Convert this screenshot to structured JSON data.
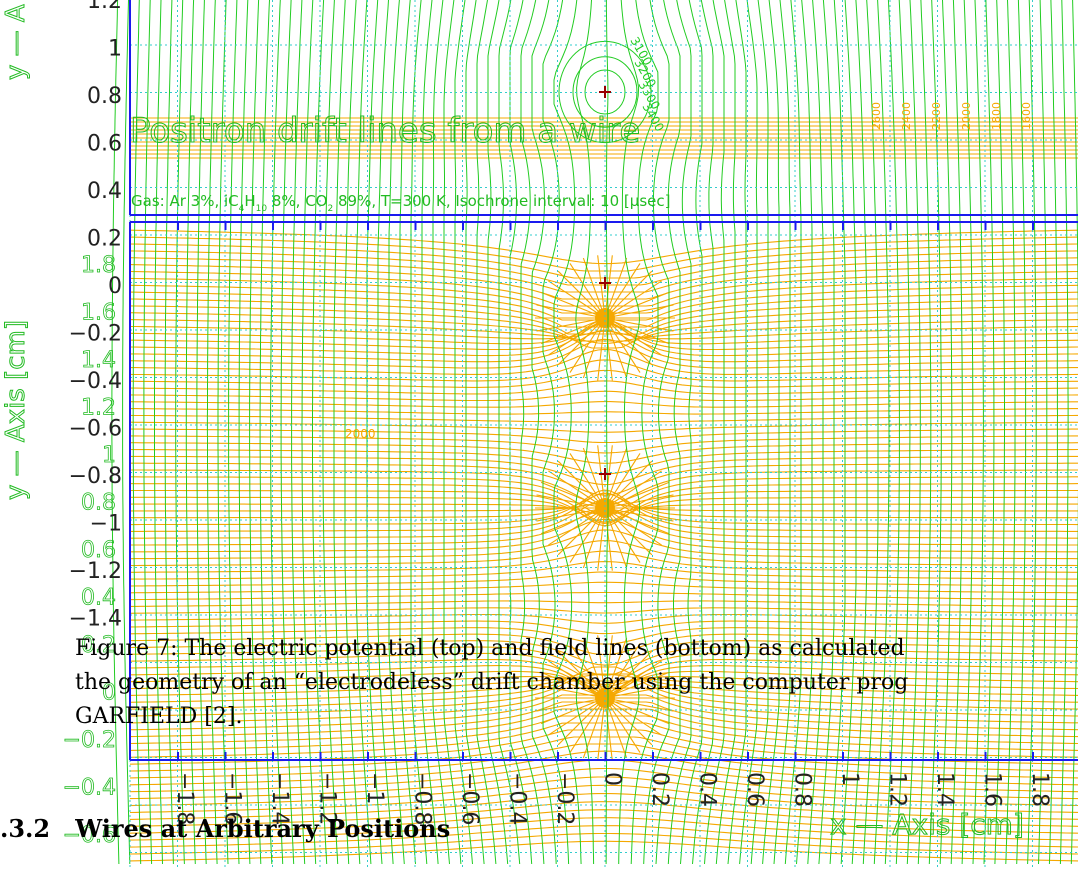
{
  "top_panel": {
    "title": "Positron drift lines from a wire",
    "gas_info": "Gas: Ar 3%, iC",
    "gas_sub1": "4",
    "gas_mid1": "H",
    "gas_sub2": "10",
    "gas_mid2": " 8%, CO",
    "gas_sub3": "2",
    "gas_tail": " 89%, T=300 K, Isochrone interval: 10 [μsec]",
    "y_ticks": [
      "1.2",
      "1",
      "0.8",
      "0.6",
      "0.4",
      "0.2",
      "0",
      "−0.2",
      "−0.4",
      "−0.6",
      "−0.8",
      "−1",
      "−1.2",
      "−1.4"
    ],
    "y_axis_label_fragment": "y — A",
    "contour_labels": [
      "3100",
      "3200",
      "3300",
      "3400",
      "2600",
      "2400",
      "2200",
      "2000",
      "1800",
      "1600"
    ]
  },
  "bottom_panel": {
    "y_ticks": [
      "1.8",
      "1.6",
      "1.4",
      "1.2",
      "1",
      "0.8",
      "0.6",
      "0.4",
      "0.2",
      "0",
      "−0.2",
      "−0.4",
      "−0.6"
    ],
    "y_axis_label": "y — Axis [cm]",
    "x_ticks": [
      "−1.8",
      "−1.6",
      "−1.4",
      "−1.2",
      "−1",
      "−0.8",
      "−0.6",
      "−0.4",
      "−0.2",
      "0",
      "0.2",
      "0.4",
      "0.6",
      "0.8",
      "1",
      "1.2",
      "1.4",
      "1.6",
      "1.8"
    ],
    "x_axis_label": "x — Axis [cm]",
    "band_label": "2000"
  },
  "caption": {
    "line1": "Figure 7:  The electric potential (top) and field lines (bottom) as calculated",
    "line2": "the geometry of an “electrodeless” drift chamber using the computer prog",
    "line3": "GARFIELD [2]."
  },
  "section": {
    "number": ".3.2",
    "title": "Wires at Arbitrary Positions"
  },
  "colors": {
    "field_lines": "#f5a800",
    "equipotential": "#22cc22",
    "grid": "#33cccc",
    "frame": "#1a1aee",
    "wire_marker": "#990000",
    "axis_text": "#22bb22"
  }
}
